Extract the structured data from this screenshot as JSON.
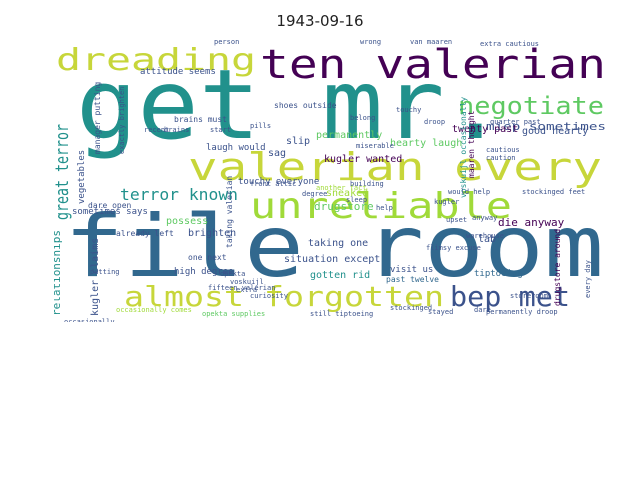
{
  "title": "1943-09-16",
  "colors": {
    "purple": "#440154",
    "indigo": "#3b528b",
    "teal": "#21918c",
    "green": "#5ec962",
    "yellow": "#c7d63a",
    "blue": "#31688e",
    "lightgreen": "#a0da39"
  },
  "words": {
    "get_mr": "get mr.",
    "file_room": "file room",
    "ten_valerian": "ten valerian",
    "valerian_every": "valerian every",
    "dreading": "dreading",
    "unreliable": "unreliable",
    "almost_forgotten": "almost forgotten",
    "bep_met": "bep met",
    "negotiate": "negotiate",
    "great_terror": "great terror",
    "terror_known": "terror known",
    "miep_sometimes": "miep sometimes",
    "relationships": "relationships",
    "permanently": "permanently",
    "kugler_wanted": "kugler wanted",
    "hearty_laugh": "hearty laugh",
    "good_hearty": "good hearty",
    "twenty_past": "twenty past",
    "attitude_seems": "attitude seems",
    "die_anyway": "die anyway",
    "drugstore": "drugstore",
    "sneaked": "sneaked",
    "sag": "sag",
    "slip": "slip",
    "possess": "possess",
    "taking_one": "taking one",
    "situation_except": "situation except",
    "gotten_rid": "gotten rid",
    "visit_us": "visit us",
    "past_twelve": "past twelve",
    "tiptoeing": "tiptoeing",
    "lab": "lab",
    "kugler_claims": "kugler claims",
    "vegetables": "vegetables",
    "sometimes_says": "sometimes says",
    "dare_open": "dare open",
    "brighten": "brighten",
    "already_left": "already left",
    "high_degree": "high degree",
    "one_next": "one next",
    "laugh_would": "laugh would",
    "touchy_everyone": "touchy everyone",
    "brains_must": "brains must",
    "shoes_outside": "shoes outside",
    "manager_putting": "manager putting",
    "occasionally_comes": "occasionally comes",
    "opekta_supplies": "opekta supplies",
    "still_tiptoeing": "still tiptoeing",
    "permanently_droop": "permanently droop",
    "stayed": "stayed",
    "voskuijl": "voskuijl",
    "voskuijl_occasionally": "voskuijl occasionally",
    "maaren_thought": "maaren thought",
    "quarter_past": "quarter past",
    "caution": "caution",
    "cautious": "cautious",
    "drugstore_around": "drugstore around",
    "another_fact": "another fact",
    "extra_cautious": "extra cautious",
    "droop": "droop",
    "touchy": "touchy",
    "taking_valerian": "taking valerian",
    "exactly_brighten": "exactly brighten",
    "recent": "recent",
    "anyway": "anyway",
    "kugler": "kugler",
    "van_maaren": "van maaren",
    "stockinged_feet": "stockinged feet",
    "flimsy_excuse": "flimsy excuse",
    "would_help": "would help",
    "fifteen_valerian": "fifteen valerian",
    "opekta": "opekta",
    "curiosity": "curiosity",
    "extra": "extra",
    "stockinged": "stockinged",
    "dare": "dare",
    "degree": "degree",
    "upset": "upset",
    "pills": "pills",
    "putting": "putting",
    "belong": "belong",
    "wrong": "wrong",
    "person": "person",
    "building": "building",
    "front_attic": "front attic",
    "storeroom": "storeroom",
    "every_day": "every day",
    "occasionally": "occasionally",
    "warehouse": "warehouse",
    "brains": "brains",
    "start": "start",
    "sleep": "sleep",
    "miserable": "miserable",
    "help": "help"
  }
}
